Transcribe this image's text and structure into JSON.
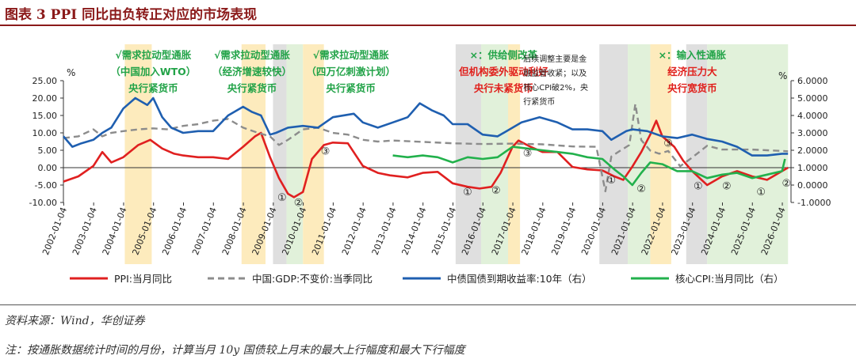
{
  "header": {
    "title": "图表 3   PPI 同比由负转正对应的市场表现"
  },
  "footer": {
    "source": "资料来源：Wind，华创证券",
    "note": "注：按通胀数据统计时间的月份，计算当月 10y 国债较上月末的最大上行幅度和最大下行幅度"
  },
  "chart_data": {
    "type": "line",
    "x_ticks": [
      "2002-01-04",
      "2003-01-04",
      "2004-01-04",
      "2005-01-04",
      "2006-01-04",
      "2007-01-04",
      "2008-01-04",
      "2009-01-04",
      "2010-01-04",
      "2011-01-04",
      "2012-01-04",
      "2013-01-04",
      "2014-01-04",
      "2015-01-04",
      "2016-01-04",
      "2017-01-04",
      "2018-01-04",
      "2019-01-04",
      "2020-01-04",
      "2021-01-04",
      "2022-01-04",
      "2023-01-04",
      "2024-01-04",
      "2025-01-04",
      "2026-01-04"
    ],
    "y_left": {
      "unit": "%",
      "range": [
        -10,
        25
      ],
      "ticks": [
        "-10.00",
        "-5.00",
        "0.00",
        "5.00",
        "10.00",
        "15.00",
        "20.00",
        "25.00"
      ]
    },
    "y_right": {
      "unit": "%",
      "range": [
        -1,
        6
      ],
      "ticks": [
        "-1.0000",
        "0.0000",
        "1.0000",
        "2.0000",
        "3.0000",
        "4.0000",
        "5.0000",
        "6.0000"
      ]
    },
    "colors": {
      "ppi": "#e02020",
      "gdp": "#8c8c8c",
      "bond": "#1f5fb0",
      "cpi": "#22b14c",
      "yellow": "#fde8b2",
      "grey": "#d9d9d9",
      "green": "#dcefd4",
      "annot_green": "#22a348",
      "annot_red": "#e0201c"
    },
    "series": [
      {
        "name": "PPI:当月同比",
        "axis": "left",
        "color": "#e02020",
        "x": [
          2002.0,
          2002.5,
          2003.0,
          2003.3,
          2003.6,
          2004.0,
          2004.5,
          2004.9,
          2005.3,
          2005.7,
          2006.0,
          2006.5,
          2007.0,
          2007.5,
          2008.0,
          2008.4,
          2008.6,
          2008.9,
          2009.2,
          2009.5,
          2009.7,
          2010.0,
          2010.3,
          2010.7,
          2011.0,
          2011.5,
          2012.0,
          2012.5,
          2012.9,
          2013.5,
          2014.0,
          2014.5,
          2015.0,
          2015.5,
          2015.9,
          2016.3,
          2016.6,
          2017.0,
          2017.2,
          2017.6,
          2018.0,
          2018.5,
          2019.0,
          2019.5,
          2020.0,
          2020.4,
          2020.7,
          2021.0,
          2021.3,
          2021.6,
          2021.8,
          2022.0,
          2022.4,
          2022.7,
          2023.0,
          2023.5,
          2024.0,
          2024.5,
          2025.0,
          2025.5,
          2026.0,
          2026.2
        ],
        "values": [
          -4.0,
          -2.5,
          0.5,
          4.5,
          1.5,
          3.0,
          6.5,
          8.0,
          5.5,
          4.0,
          3.5,
          3.0,
          3.0,
          2.5,
          6.0,
          9.0,
          10.0,
          3.0,
          -3.0,
          -7.5,
          -8.5,
          -7.0,
          2.5,
          6.5,
          7.2,
          7.0,
          0.5,
          -1.5,
          -2.2,
          -2.8,
          -1.5,
          -1.2,
          -4.5,
          -5.5,
          -6.0,
          -5.5,
          -1.5,
          6.0,
          7.8,
          6.0,
          4.5,
          4.5,
          0.2,
          -0.5,
          -0.8,
          -2.5,
          -3.5,
          0.3,
          4.5,
          9.5,
          13.5,
          9.0,
          6.0,
          2.0,
          -1.0,
          -5.0,
          -2.5,
          -1.0,
          -2.5,
          -3.5,
          -1.0,
          0.0
        ]
      },
      {
        "name": "中国:GDP:不变价:当季同比",
        "axis": "left",
        "color": "#8c8c8c",
        "x": [
          2002.0,
          2002.5,
          2003.0,
          2003.3,
          2003.6,
          2004.0,
          2004.5,
          2005.0,
          2005.5,
          2006.0,
          2006.5,
          2007.0,
          2007.5,
          2008.0,
          2008.5,
          2008.9,
          2009.2,
          2009.5,
          2010.0,
          2010.5,
          2011.0,
          2011.5,
          2012.0,
          2012.5,
          2013.0,
          2014.0,
          2015.0,
          2016.0,
          2017.0,
          2018.0,
          2019.0,
          2019.8,
          2020.1,
          2020.3,
          2020.6,
          2020.9,
          2021.1,
          2021.3,
          2021.6,
          2021.9,
          2022.2,
          2022.6,
          2023.0,
          2023.5,
          2024.0,
          2025.0,
          2026.0,
          2026.2
        ],
        "values": [
          8.5,
          9.0,
          11.0,
          9.0,
          10.0,
          10.5,
          11.0,
          11.3,
          11.0,
          12.0,
          12.5,
          13.5,
          14.0,
          11.5,
          10.0,
          9.0,
          6.5,
          8.0,
          11.0,
          11.5,
          10.0,
          9.5,
          8.0,
          7.5,
          7.8,
          7.4,
          7.0,
          6.8,
          6.9,
          6.7,
          6.1,
          6.0,
          -6.8,
          3.2,
          4.9,
          6.5,
          18.3,
          7.9,
          4.9,
          4.0,
          4.8,
          0.4,
          2.9,
          6.3,
          5.2,
          5.2,
          4.8,
          4.7
        ]
      },
      {
        "name": "中债国债到期收益率:10年（右）",
        "axis": "right",
        "color": "#1f5fb0",
        "x": [
          2002.0,
          2002.3,
          2002.6,
          2003.0,
          2003.3,
          2003.6,
          2004.0,
          2004.4,
          2004.8,
          2005.0,
          2005.3,
          2005.6,
          2006.0,
          2006.5,
          2007.0,
          2007.5,
          2008.0,
          2008.3,
          2008.6,
          2008.9,
          2009.1,
          2009.5,
          2010.0,
          2010.5,
          2011.0,
          2011.7,
          2012.0,
          2012.5,
          2013.0,
          2013.5,
          2013.9,
          2014.3,
          2014.7,
          2015.0,
          2015.5,
          2016.0,
          2016.5,
          2016.9,
          2017.3,
          2017.9,
          2018.5,
          2019.0,
          2019.5,
          2020.0,
          2020.3,
          2020.8,
          2021.0,
          2021.5,
          2022.0,
          2022.5,
          2023.0,
          2023.5,
          2024.0,
          2024.5,
          2025.0,
          2025.5,
          2026.0,
          2026.2
        ],
        "values": [
          2.8,
          2.2,
          2.4,
          2.6,
          3.0,
          3.3,
          4.4,
          5.0,
          4.6,
          5.0,
          3.9,
          3.3,
          3.0,
          3.1,
          3.1,
          4.0,
          4.5,
          4.2,
          4.0,
          2.9,
          3.0,
          3.3,
          3.4,
          3.3,
          3.9,
          4.1,
          3.6,
          3.3,
          3.6,
          3.9,
          4.7,
          4.3,
          4.0,
          3.5,
          3.5,
          2.9,
          2.8,
          3.2,
          3.6,
          3.9,
          3.6,
          3.2,
          3.2,
          3.1,
          2.6,
          3.1,
          3.2,
          3.1,
          2.8,
          2.7,
          2.9,
          2.65,
          2.5,
          2.2,
          1.7,
          1.7,
          1.8,
          1.8
        ]
      },
      {
        "name": "核心CPI:当月同比（右）",
        "axis": "right",
        "color": "#22b14c",
        "x": [
          2013.0,
          2013.5,
          2014.0,
          2014.5,
          2015.0,
          2015.5,
          2016.0,
          2016.5,
          2017.0,
          2017.5,
          2018.0,
          2018.5,
          2019.0,
          2019.5,
          2020.0,
          2020.4,
          2020.7,
          2021.0,
          2021.3,
          2021.6,
          2022.0,
          2022.5,
          2023.0,
          2023.5,
          2024.0,
          2024.5,
          2025.0,
          2025.5,
          2026.0,
          2026.1
        ],
        "values": [
          1.7,
          1.6,
          1.7,
          1.6,
          1.3,
          1.6,
          1.5,
          1.6,
          2.2,
          2.1,
          2.0,
          1.9,
          1.8,
          1.6,
          1.5,
          0.9,
          0.5,
          0.0,
          0.7,
          1.3,
          1.2,
          0.8,
          0.8,
          0.4,
          0.6,
          0.7,
          0.4,
          0.6,
          0.8,
          1.5
        ]
      }
    ],
    "shaded_regions": [
      {
        "from": 2004.05,
        "to": 2004.95,
        "color": "yellow"
      },
      {
        "from": 2007.95,
        "to": 2008.75,
        "color": "yellow"
      },
      {
        "from": 2009.0,
        "to": 2009.45,
        "color": "grey"
      },
      {
        "from": 2009.45,
        "to": 2010.0,
        "color": "green"
      },
      {
        "from": 2010.0,
        "to": 2010.7,
        "color": "yellow"
      },
      {
        "from": 2015.1,
        "to": 2015.95,
        "color": "grey"
      },
      {
        "from": 2015.95,
        "to": 2016.85,
        "color": "green"
      },
      {
        "from": 2016.85,
        "to": 2017.25,
        "color": "yellow"
      },
      {
        "from": 2019.9,
        "to": 2020.85,
        "color": "grey"
      },
      {
        "from": 2020.85,
        "to": 2021.6,
        "color": "green"
      },
      {
        "from": 2021.6,
        "to": 2022.3,
        "color": "yellow"
      },
      {
        "from": 2022.8,
        "to": 2023.5,
        "color": "grey"
      },
      {
        "from": 2023.5,
        "to": 2026.2,
        "color": "green"
      }
    ],
    "annotations": [
      {
        "lines": [
          "√需求拉动型通胀",
          "（中国加入WTO）",
          "央行紧货币"
        ],
        "x": 2005.0,
        "colors": [
          "annot_green",
          "annot_green",
          "annot_green"
        ]
      },
      {
        "lines": [
          "√需求拉动型通胀",
          "（经济增速较快）",
          "央行紧货币"
        ],
        "x": 2008.3,
        "colors": [
          "annot_green",
          "annot_green",
          "annot_green"
        ]
      },
      {
        "lines": [
          "√需求拉动型通胀",
          "（四万亿刺激计划）",
          "央行紧货币"
        ],
        "x": 2011.6,
        "colors": [
          "annot_green",
          "annot_green",
          "annot_green"
        ]
      },
      {
        "lines": [
          "×：供给侧改革",
          "但机构委外驱动利好",
          "央行未紧货币"
        ],
        "x": 2016.7,
        "colors": [
          "annot_green",
          "annot_red",
          "annot_red"
        ]
      },
      {
        "lines": [
          "后续调整主要是金",
          "融监管收紧；以及",
          "核心CPI破2%，央",
          "行紧货币"
        ],
        "x": 2019.0,
        "small": true
      },
      {
        "lines": [
          "×：输入性通胀",
          "经济压力大",
          "央行宽货币"
        ],
        "x": 2023.0,
        "colors": [
          "annot_green",
          "annot_red",
          "annot_red"
        ]
      }
    ],
    "circle_markers": [
      {
        "label": "①",
        "x": 2009.3,
        "y": -9.5
      },
      {
        "label": "②",
        "x": 2009.85,
        "y": -11.0
      },
      {
        "label": "③",
        "x": 2010.75,
        "y": 3.8
      },
      {
        "label": "①",
        "x": 2015.5,
        "y": -8.0
      },
      {
        "label": "②",
        "x": 2016.45,
        "y": -7.5
      },
      {
        "label": "③",
        "x": 2017.5,
        "y": 3.2
      },
      {
        "label": "①",
        "x": 2020.3,
        "y": -4.5
      },
      {
        "label": "②",
        "x": 2021.3,
        "y": -7.0
      },
      {
        "label": "③",
        "x": 2022.2,
        "y": 6.0
      },
      {
        "label": "①",
        "x": 2023.2,
        "y": -6.2
      },
      {
        "label": "②",
        "x": 2024.15,
        "y": -6.2
      },
      {
        "label": "①",
        "x": 2025.3,
        "y": -8.0
      },
      {
        "label": "②",
        "x": 2026.15,
        "y": -5.5
      }
    ]
  }
}
